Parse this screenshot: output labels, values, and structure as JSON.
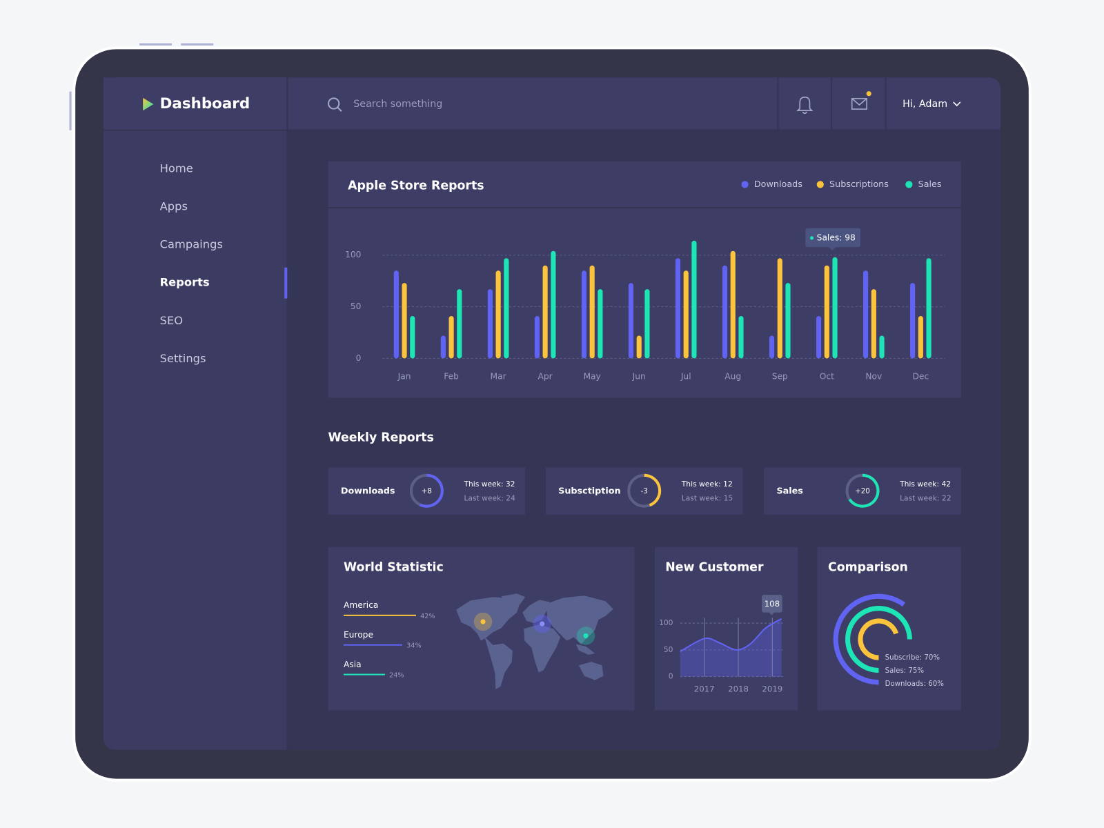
{
  "header": {
    "logo": "Dashboard",
    "search_placeholder": "Search something",
    "user": "Hi, Adam"
  },
  "nav": {
    "items": [
      {
        "label": "Home",
        "active": false
      },
      {
        "label": "Apps",
        "active": false
      },
      {
        "label": "Campaings",
        "active": false
      },
      {
        "label": "Reports",
        "active": true
      },
      {
        "label": "SEO",
        "active": false
      },
      {
        "label": "Settings",
        "active": false
      }
    ]
  },
  "apple_store": {
    "type": "bar",
    "title": "Apple Store Reports",
    "categories": [
      "Jan",
      "Feb",
      "Mar",
      "Apr",
      "May",
      "Jun",
      "Jul",
      "Aug",
      "Sep",
      "Oct",
      "Nov",
      "Dec"
    ],
    "series": [
      {
        "name": "Downloads",
        "color": "#6164f2",
        "values": [
          85,
          22,
          67,
          41,
          85,
          73,
          97,
          90,
          22,
          41,
          85,
          73
        ]
      },
      {
        "name": "Subscriptions",
        "color": "#fcc43c",
        "values": [
          73,
          41,
          85,
          90,
          90,
          22,
          85,
          104,
          97,
          90,
          67,
          41
        ]
      },
      {
        "name": "Sales",
        "color": "#1de5b5",
        "values": [
          41,
          67,
          97,
          104,
          67,
          67,
          114,
          41,
          73,
          98,
          22,
          97
        ]
      }
    ],
    "ylim": [
      0,
      120
    ],
    "yticks": [
      0,
      50,
      100
    ],
    "grid": true,
    "tooltip": "Sales: 98"
  },
  "weekly": {
    "title": "Weekly Reports",
    "cards": [
      {
        "name": "Downloads",
        "color": "#6164f2",
        "change": "+8",
        "this_week": {
          "value": 32,
          "label": "This week: 32"
        },
        "last_week": {
          "value": 24,
          "label": "Last week: 24"
        }
      },
      {
        "name": "Subsctiption",
        "color": "#fcc43c",
        "change": "-3",
        "this_week": {
          "value": 12,
          "label": "This week: 12"
        },
        "last_week": {
          "value": 15,
          "label": "Last week: 15"
        }
      },
      {
        "name": "Sales",
        "color": "#1de5b5",
        "change": "+20",
        "this_week": {
          "value": 42,
          "label": "This week: 42"
        },
        "last_week": {
          "value": 22,
          "label": "Last week: 22"
        }
      }
    ]
  },
  "world": {
    "type": "bar",
    "title": "World Statistic",
    "categories": [
      "America",
      "Europe",
      "Asia"
    ],
    "values": [
      42,
      34,
      24
    ],
    "value_labels": [
      "42%",
      "34%",
      "24%"
    ],
    "colors": [
      "#fcc43c",
      "#6164f2",
      "#1de5b5"
    ]
  },
  "new_customer": {
    "type": "area",
    "title": "New Customer",
    "x": [
      2016.29,
      2017,
      2017.42,
      2017.94,
      2018.35,
      2018.77,
      2019.06,
      2019.27
    ],
    "values": [
      47,
      71,
      64,
      50,
      61,
      89,
      101,
      108
    ],
    "xlim": [
      2016.29,
      2019.27
    ],
    "xticks": [
      2017,
      2018,
      2019
    ],
    "ylim": [
      0,
      115
    ],
    "yticks": [
      0,
      50,
      100
    ],
    "color": "#6164f2",
    "grid": true
  },
  "comparison": {
    "type": "donut",
    "title": "Comparison",
    "series": [
      {
        "value": 70,
        "label": "Subscribe: 70%",
        "color": "#fcc43c"
      },
      {
        "value": 75,
        "label": "Sales: 75%",
        "color": "#1de5b5"
      },
      {
        "value": 60,
        "label": "Downloads: 60%",
        "color": "#6164f2"
      }
    ]
  }
}
